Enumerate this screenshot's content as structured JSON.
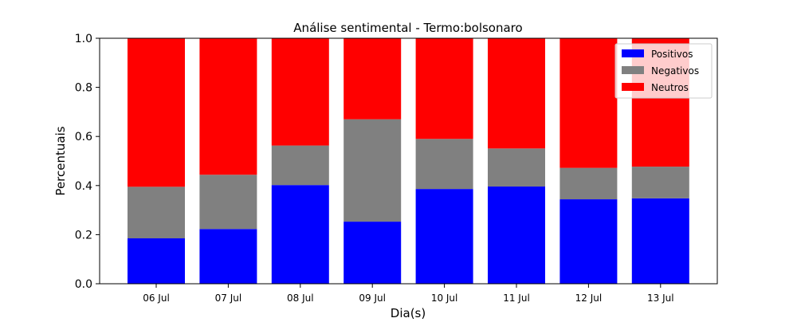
{
  "chart_data": {
    "type": "bar",
    "stacked": true,
    "title": "Análise sentimental - Termo:bolsonaro",
    "xlabel": "Dia(s)",
    "ylabel": "Percentuais",
    "ylim": [
      0,
      1.0
    ],
    "yticks": [
      "0.0",
      "0.2",
      "0.4",
      "0.6",
      "0.8",
      "1.0"
    ],
    "categories": [
      "06 Jul",
      "07 Jul",
      "08 Jul",
      "09 Jul",
      "10 Jul",
      "11 Jul",
      "12 Jul",
      "13 Jul"
    ],
    "series": [
      {
        "name": "Positivos",
        "color": "#0000ff",
        "values": [
          0.185,
          0.223,
          0.402,
          0.253,
          0.386,
          0.396,
          0.344,
          0.348
        ]
      },
      {
        "name": "Negativos",
        "color": "#808080",
        "values": [
          0.21,
          0.221,
          0.161,
          0.417,
          0.204,
          0.155,
          0.128,
          0.129
        ]
      },
      {
        "name": "Neutros",
        "color": "#ff0000",
        "values": [
          0.605,
          0.556,
          0.437,
          0.33,
          0.41,
          0.449,
          0.528,
          0.523
        ]
      }
    ],
    "grid": false,
    "legend_position": "top-right"
  }
}
